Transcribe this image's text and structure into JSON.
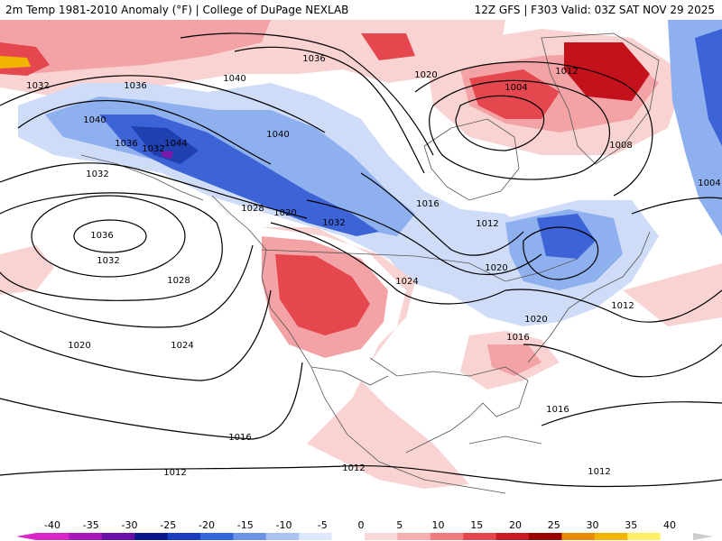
{
  "header": {
    "left": "2m Temp 1981-2010 Anomaly (°F) | College of DuPage NEXLAB",
    "right": "12Z GFS | F303 Valid: 03Z SAT NOV 29 2025"
  },
  "isobar_labels": [
    {
      "id": "a",
      "text": "1036"
    },
    {
      "id": "b",
      "text": "1040"
    },
    {
      "id": "c",
      "text": "1032"
    },
    {
      "id": "d",
      "text": "1036"
    },
    {
      "id": "e",
      "text": "1040"
    },
    {
      "id": "f",
      "text": "1036"
    },
    {
      "id": "g",
      "text": "1032"
    },
    {
      "id": "h",
      "text": "1044"
    },
    {
      "id": "i",
      "text": "1040"
    },
    {
      "id": "j",
      "text": "1020"
    },
    {
      "id": "k",
      "text": "1012"
    },
    {
      "id": "l",
      "text": "1004"
    },
    {
      "id": "m",
      "text": "1008"
    },
    {
      "id": "n",
      "text": "1032"
    },
    {
      "id": "o",
      "text": "1036"
    },
    {
      "id": "p",
      "text": "1032"
    },
    {
      "id": "q",
      "text": "1028"
    },
    {
      "id": "r",
      "text": "1028"
    },
    {
      "id": "s",
      "text": "1020"
    },
    {
      "id": "t",
      "text": "1032"
    },
    {
      "id": "u",
      "text": "1016"
    },
    {
      "id": "v",
      "text": "1012"
    },
    {
      "id": "w",
      "text": "1024"
    },
    {
      "id": "x",
      "text": "1020"
    },
    {
      "id": "y",
      "text": "1020"
    },
    {
      "id": "z",
      "text": "1016"
    },
    {
      "id": "aa",
      "text": "1020"
    },
    {
      "id": "ab",
      "text": "1024"
    },
    {
      "id": "ac",
      "text": "1012"
    },
    {
      "id": "ad",
      "text": "1004"
    },
    {
      "id": "ae",
      "text": "1016"
    },
    {
      "id": "af",
      "text": "1016"
    },
    {
      "id": "ag",
      "text": "1012"
    },
    {
      "id": "ah",
      "text": "1012"
    },
    {
      "id": "ai",
      "text": "1012"
    }
  ],
  "colorbar": {
    "ticks": [
      "-40",
      "-35",
      "-30",
      "-25",
      "-20",
      "-15",
      "-10",
      "-5",
      "0",
      "5",
      "10",
      "15",
      "20",
      "25",
      "30",
      "35",
      "40"
    ],
    "colors": [
      "#d926c9",
      "#a818b8",
      "#6a0fa8",
      "#0a1a8c",
      "#1a3dbd",
      "#3366dd",
      "#6b93e8",
      "#a9c4f2",
      "#dde8fb",
      "#ffffff",
      "#fbd8d8",
      "#f7aeb0",
      "#f07c80",
      "#e3464d",
      "#c91a24",
      "#9a0000",
      "#e88a00",
      "#f2b400",
      "#fff06a",
      "#ffffff"
    ]
  },
  "palette": {
    "cold_light": "#cfdcf8",
    "cold_mid": "#8fb0ee",
    "cold_deep": "#3c64d6",
    "cold_extreme": "#2040b0",
    "warm_light": "#f9d2d2",
    "warm_mid": "#f3a3a6",
    "warm_deep": "#e4474e",
    "warm_extreme": "#c4121c",
    "hot": "#f2b400",
    "isobar": "#000000",
    "coast": "#555555"
  }
}
